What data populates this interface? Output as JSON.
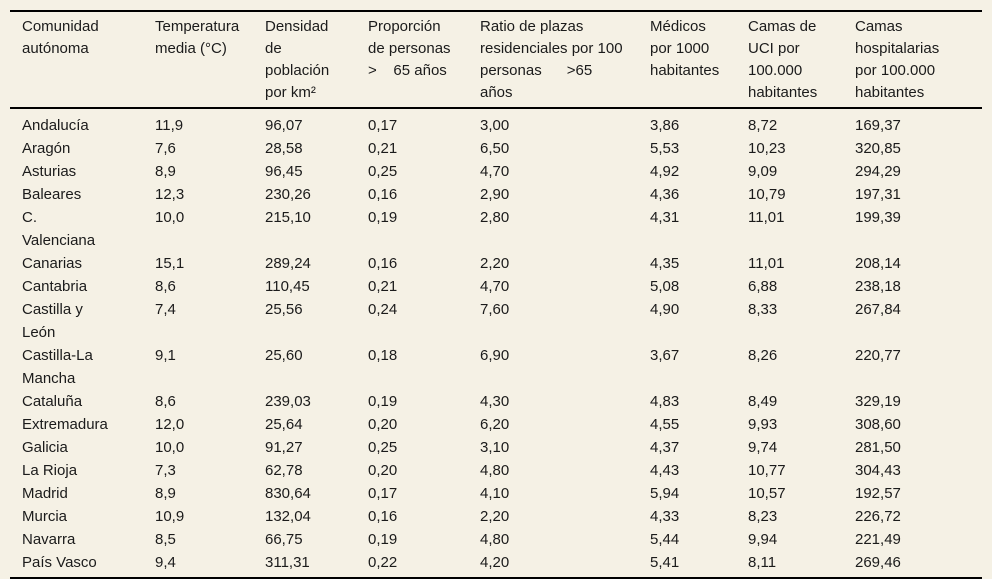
{
  "page": {
    "background_color": "#f5f1e5",
    "text_color": "#1b1b1b",
    "rule_color": "#000000"
  },
  "table": {
    "columns": [
      {
        "id": "comunidad-autonoma",
        "label": "Comunidad\nautónoma"
      },
      {
        "id": "temperatura-media",
        "label": "Temperatura\nmedia (°C)"
      },
      {
        "id": "densidad-poblacion",
        "label": "Densidad\nde\npoblación\npor km²"
      },
      {
        "id": "proporcion-mayores-65",
        "label": "Proporción\nde personas\n>    65 años"
      },
      {
        "id": "ratio-plazas-residenciales",
        "label": "Ratio de plazas\nresidenciales por 100\npersonas      >65\naños"
      },
      {
        "id": "medicos-por-1000",
        "label": "Médicos\npor 1000\nhabitantes"
      },
      {
        "id": "camas-uci",
        "label": "Camas de\nUCI por\n100.000\nhabitantes"
      },
      {
        "id": "camas-hospitalarias",
        "label": "Camas\nhospitalarias\npor 100.000\nhabitantes"
      }
    ],
    "rows": [
      [
        "Andalucía",
        "11,9",
        "96,07",
        "0,17",
        "3,00",
        "3,86",
        "8,72",
        "169,37"
      ],
      [
        "Aragón",
        "7,6",
        "28,58",
        "0,21",
        "6,50",
        "5,53",
        "10,23",
        "320,85"
      ],
      [
        "Asturias",
        "8,9",
        "96,45",
        "0,25",
        "4,70",
        "4,92",
        "9,09",
        "294,29"
      ],
      [
        "Baleares",
        "12,3",
        "230,26",
        "0,16",
        "2,90",
        "4,36",
        "10,79",
        "197,31"
      ],
      [
        "C.\nValenciana",
        "10,0",
        "215,10",
        "0,19",
        "2,80",
        "4,31",
        "11,01",
        "199,39"
      ],
      [
        "Canarias",
        "15,1",
        "289,24",
        "0,16",
        "2,20",
        "4,35",
        "11,01",
        "208,14"
      ],
      [
        "Cantabria",
        "8,6",
        "110,45",
        "0,21",
        "4,70",
        "5,08",
        "6,88",
        "238,18"
      ],
      [
        "Castilla y\nLeón",
        "7,4",
        "25,56",
        "0,24",
        "7,60",
        "4,90",
        "8,33",
        "267,84"
      ],
      [
        "Castilla-La\nMancha",
        "9,1",
        "25,60",
        "0,18",
        "6,90",
        "3,67",
        "8,26",
        "220,77"
      ],
      [
        "Cataluña",
        "8,6",
        "239,03",
        "0,19",
        "4,30",
        "4,83",
        "8,49",
        "329,19"
      ],
      [
        "Extremadura",
        "12,0",
        "25,64",
        "0,20",
        "6,20",
        "4,55",
        "9,93",
        "308,60"
      ],
      [
        "Galicia",
        "10,0",
        "91,27",
        "0,25",
        "3,10",
        "4,37",
        "9,74",
        "281,50"
      ],
      [
        "La Rioja",
        "7,3",
        "62,78",
        "0,20",
        "4,80",
        "4,43",
        "10,77",
        "304,43"
      ],
      [
        "Madrid",
        "8,9",
        "830,64",
        "0,17",
        "4,10",
        "5,94",
        "10,57",
        "192,57"
      ],
      [
        "Murcia",
        "10,9",
        "132,04",
        "0,16",
        "2,20",
        "4,33",
        "8,23",
        "226,72"
      ],
      [
        "Navarra",
        "8,5",
        "66,75",
        "0,19",
        "4,80",
        "5,44",
        "9,94",
        "221,49"
      ],
      [
        "País Vasco",
        "9,4",
        "311,31",
        "0,22",
        "4,20",
        "5,41",
        "8,11",
        "269,46"
      ]
    ]
  }
}
